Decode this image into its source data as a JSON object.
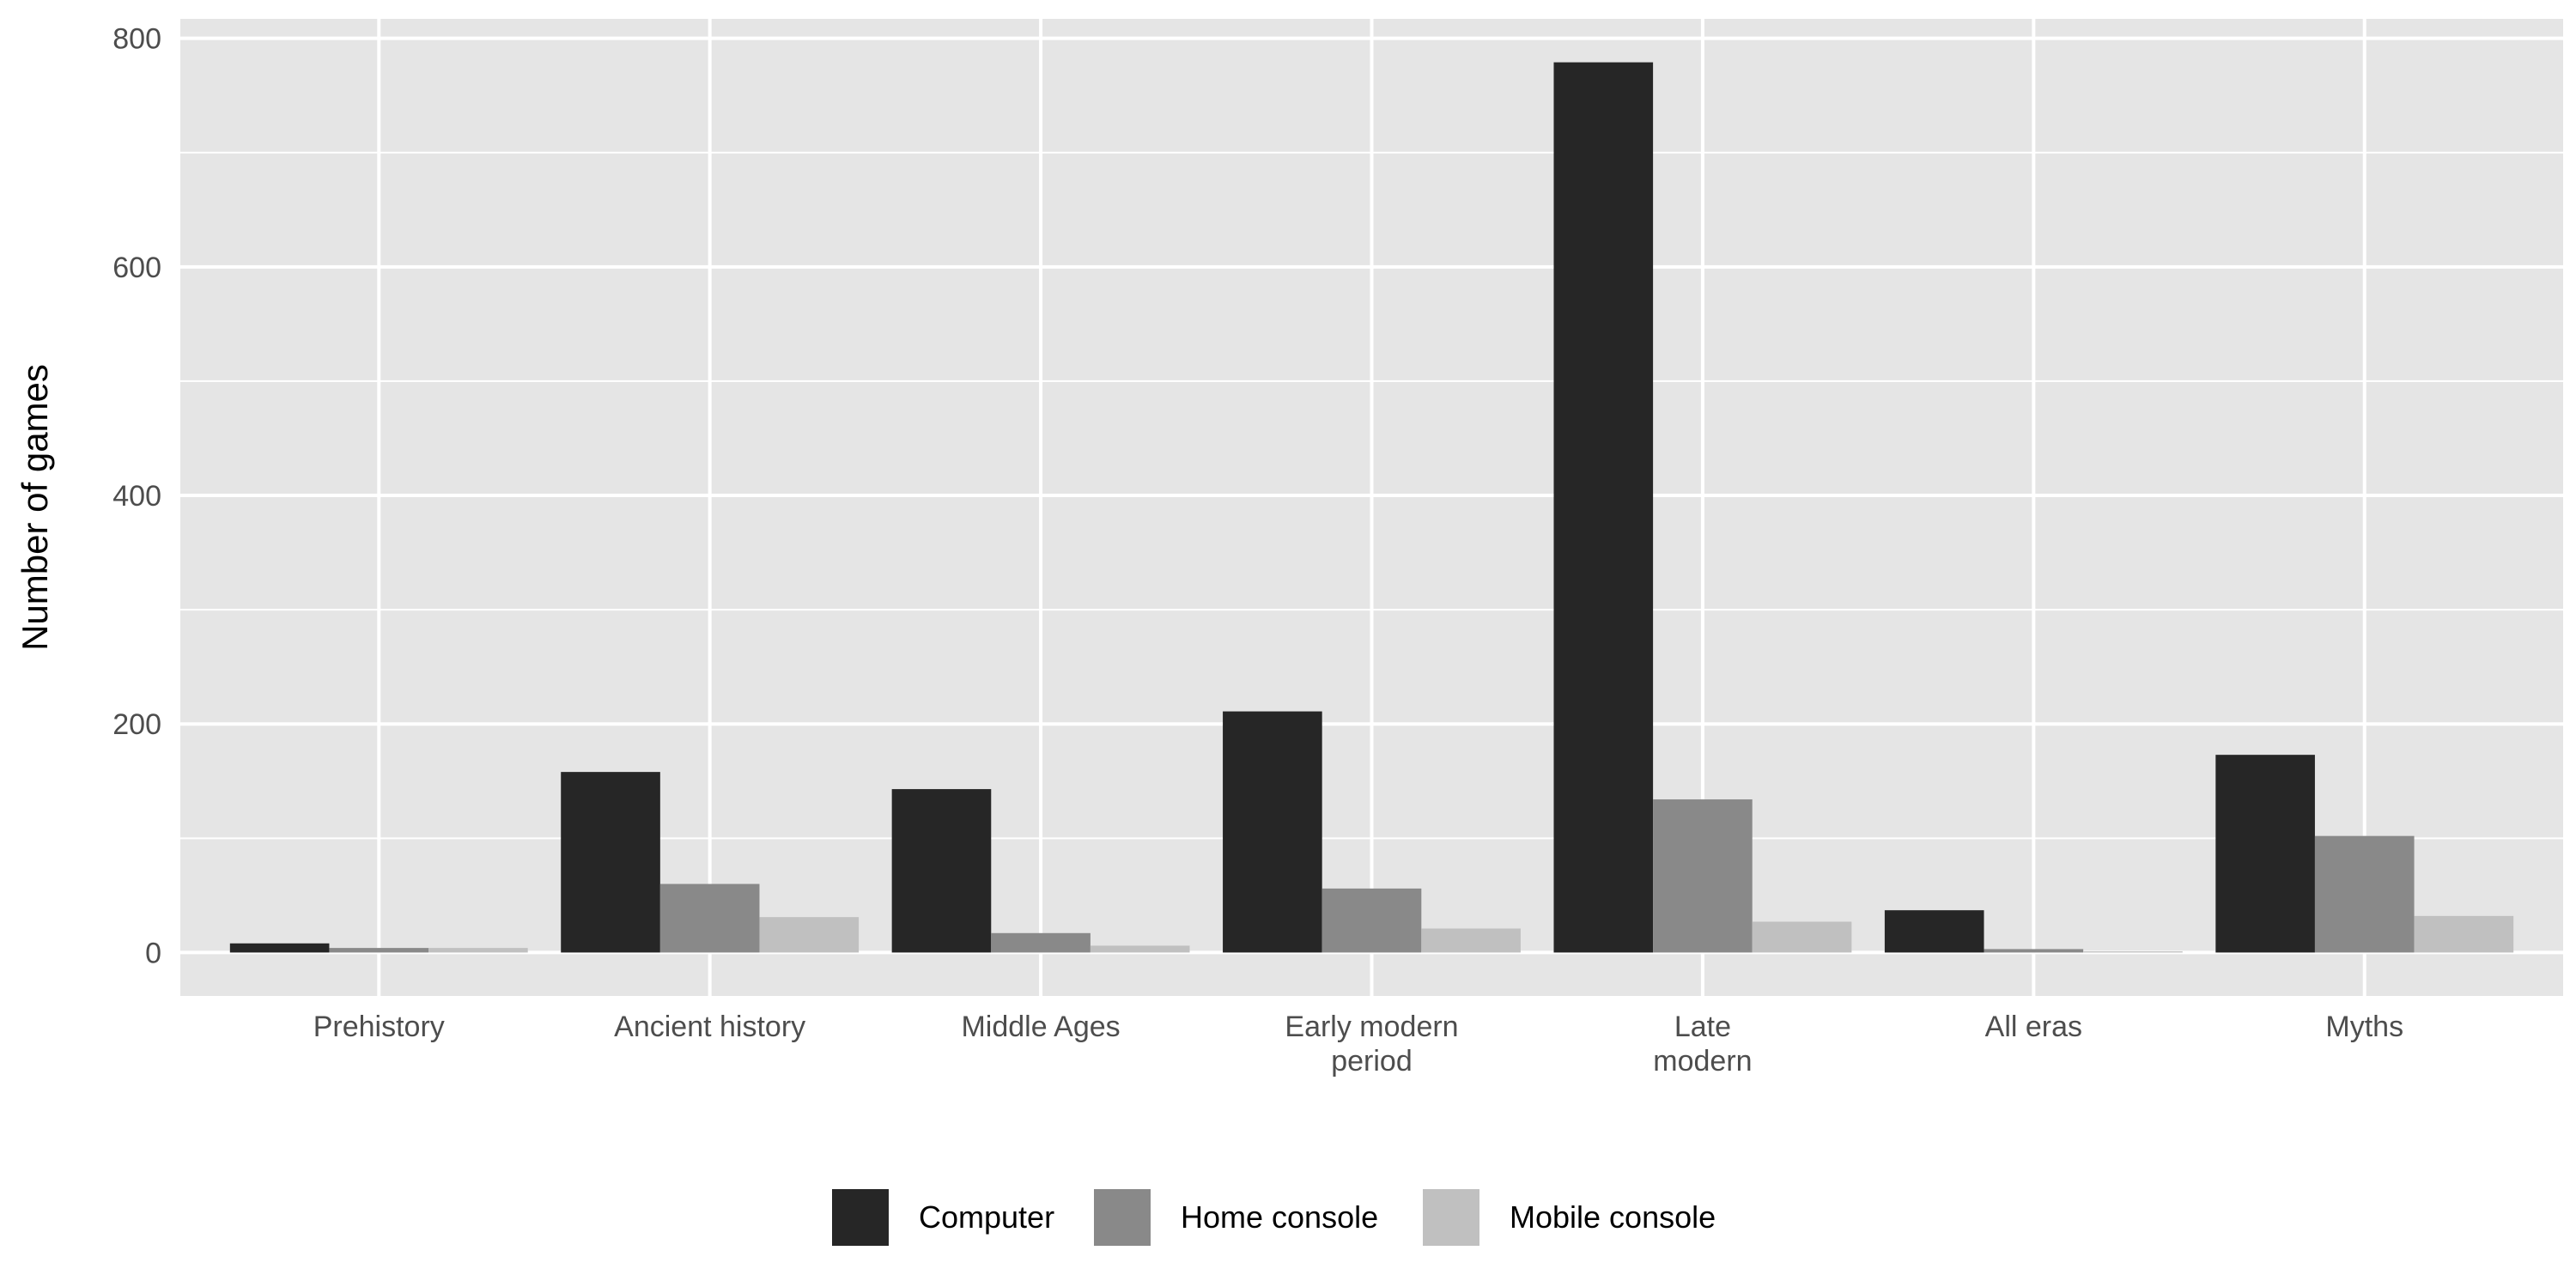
{
  "chart_data": {
    "type": "bar",
    "title": "",
    "xlabel": "",
    "ylabel": "Number of games",
    "categories": [
      [
        "Prehistory"
      ],
      [
        "Ancient history"
      ],
      [
        "Middle Ages"
      ],
      [
        "Early modern",
        "period"
      ],
      [
        "Late",
        "modern"
      ],
      [
        "All eras"
      ],
      [
        "Myths"
      ]
    ],
    "series": [
      {
        "name": "Computer",
        "color": "#262626",
        "values": [
          8,
          158,
          143,
          211,
          779,
          37,
          173
        ]
      },
      {
        "name": "Home console",
        "color": "#898989",
        "values": [
          4,
          60,
          17,
          56,
          134,
          3,
          102
        ]
      },
      {
        "name": "Mobile console",
        "color": "#c0c0c0",
        "values": [
          4,
          31,
          6,
          21,
          27,
          1,
          32
        ]
      }
    ],
    "ylim": [
      -38,
      817
    ],
    "yticks": [
      0,
      200,
      400,
      600,
      800
    ],
    "grid": true,
    "legend_position": "bottom",
    "panel_color": "#e5e5e5",
    "grid_color": "#ffffff"
  }
}
